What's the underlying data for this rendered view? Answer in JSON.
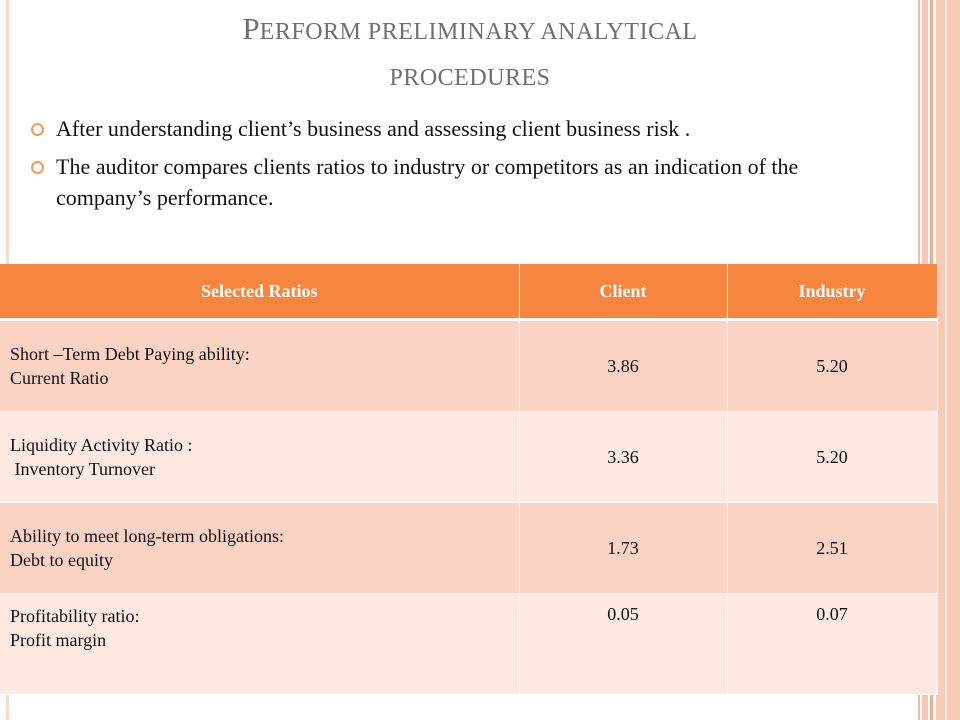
{
  "slide": {
    "title_line1_cap": "P",
    "title_line1_rest": "erform preliminary analytical",
    "title_line2": "procedures",
    "bullets": [
      "After understanding client’s business and assessing client business risk .",
      "The auditor compares clients ratios to industry or competitors as an indication of the company’s performance."
    ]
  },
  "table": {
    "headers": [
      "Selected Ratios",
      "Client",
      "Industry"
    ],
    "rows": [
      {
        "line1": "Short –Term Debt Paying ability:",
        "line2": "Current Ratio",
        "client": "3.86",
        "industry": "5.20"
      },
      {
        "line1": "Liquidity Activity Ratio :",
        "line2": " Inventory Turnover",
        "client": "3.36",
        "industry": "5.20"
      },
      {
        "line1": "Ability to meet long-term obligations:",
        "line2": "Debt to equity",
        "client": "1.73",
        "industry": "2.51"
      },
      {
        "line1": "Profitability ratio:",
        "line2": "Profit margin",
        "client": "0.05",
        "industry": "0.07"
      }
    ]
  },
  "colors": {
    "header": "#f5853f",
    "row_dark": "#fbd3c5",
    "row_light": "#fde9e2",
    "bullet": "#f39a5a",
    "title": "#6f6f6f"
  }
}
